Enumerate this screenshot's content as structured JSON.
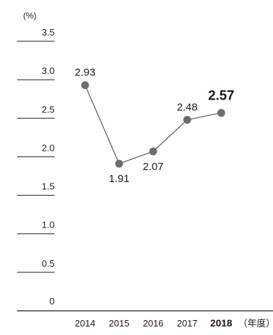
{
  "chart_data": {
    "type": "line",
    "y_unit": "(%)",
    "x_unit": "（年度）",
    "categories": [
      "2014",
      "2015",
      "2016",
      "2017",
      "2018"
    ],
    "values": [
      2.93,
      1.91,
      2.07,
      2.48,
      2.57
    ],
    "value_labels": [
      "2.93",
      "1.91",
      "2.07",
      "2.48",
      "2.57"
    ],
    "highlight_index": 4,
    "ylim": [
      0,
      3.5
    ],
    "y_ticks": [
      "0",
      "0.5",
      "1.0",
      "1.5",
      "2.0",
      "2.5",
      "3.0",
      "3.5"
    ],
    "label_placement": [
      "above",
      "below",
      "below",
      "above",
      "above"
    ],
    "grid": false,
    "legend": "none",
    "colors": {
      "line": "#595757",
      "marker": "#6d6d6d",
      "text": "#231815",
      "axis": "#231815"
    }
  }
}
